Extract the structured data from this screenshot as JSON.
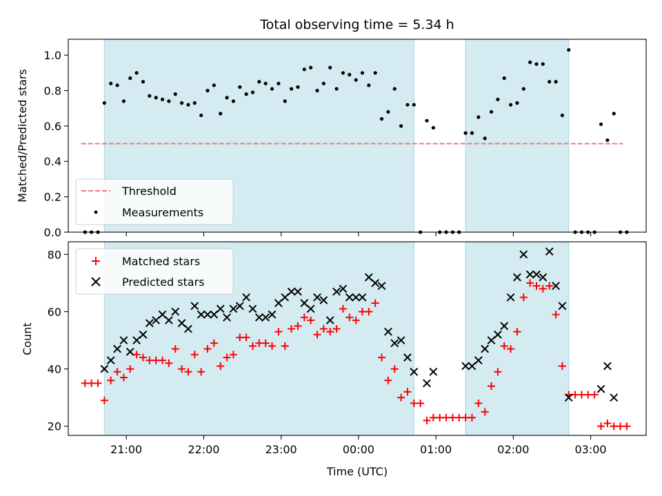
{
  "chart_data": [
    {
      "type": "scatter",
      "title": "Total observing time = 5.34 h",
      "xlabel": "",
      "ylabel": "Matched/Predicted stars",
      "ylim": [
        0,
        1.09
      ],
      "yticks": [
        0.0,
        0.2,
        0.4,
        0.6,
        0.8,
        1.0
      ],
      "ytick_labels": [
        "0.0",
        "0.2",
        "0.4",
        "0.6",
        "0.8",
        "1.0"
      ],
      "legend_position": "lower-left",
      "legend": [
        "Threshold",
        "Measurements"
      ],
      "threshold": {
        "name": "Threshold",
        "value": 0.5,
        "x_range": [
          "20:25",
          "03:25"
        ],
        "color": "#f07878"
      },
      "shaded_intervals": [
        [
          "20:43",
          "00:43"
        ],
        [
          "01:23",
          "02:43"
        ]
      ],
      "shade_color": "#d4ebf1",
      "series": [
        {
          "name": "Measurements",
          "color": "#000000",
          "points": [
            [
              "20:28",
              0.0
            ],
            [
              "20:33",
              0.0
            ],
            [
              "20:38",
              0.0
            ],
            [
              "20:43",
              0.73
            ],
            [
              "20:48",
              0.84
            ],
            [
              "20:53",
              0.83
            ],
            [
              "20:58",
              0.74
            ],
            [
              "21:03",
              0.87
            ],
            [
              "21:08",
              0.9
            ],
            [
              "21:13",
              0.85
            ],
            [
              "21:18",
              0.77
            ],
            [
              "21:23",
              0.76
            ],
            [
              "21:28",
              0.75
            ],
            [
              "21:33",
              0.74
            ],
            [
              "21:38",
              0.78
            ],
            [
              "21:43",
              0.73
            ],
            [
              "21:48",
              0.72
            ],
            [
              "21:53",
              0.73
            ],
            [
              "21:58",
              0.66
            ],
            [
              "22:03",
              0.8
            ],
            [
              "22:08",
              0.83
            ],
            [
              "22:13",
              0.67
            ],
            [
              "22:18",
              0.76
            ],
            [
              "22:23",
              0.74
            ],
            [
              "22:28",
              0.82
            ],
            [
              "22:33",
              0.78
            ],
            [
              "22:38",
              0.79
            ],
            [
              "22:43",
              0.85
            ],
            [
              "22:48",
              0.84
            ],
            [
              "22:53",
              0.81
            ],
            [
              "22:58",
              0.84
            ],
            [
              "23:03",
              0.74
            ],
            [
              "23:08",
              0.81
            ],
            [
              "23:13",
              0.82
            ],
            [
              "23:18",
              0.92
            ],
            [
              "23:23",
              0.93
            ],
            [
              "23:28",
              0.8
            ],
            [
              "23:33",
              0.84
            ],
            [
              "23:38",
              0.93
            ],
            [
              "23:43",
              0.81
            ],
            [
              "23:48",
              0.9
            ],
            [
              "23:53",
              0.89
            ],
            [
              "23:58",
              0.86
            ],
            [
              "00:03",
              0.9
            ],
            [
              "00:08",
              0.83
            ],
            [
              "00:13",
              0.9
            ],
            [
              "00:18",
              0.64
            ],
            [
              "00:23",
              0.68
            ],
            [
              "00:28",
              0.81
            ],
            [
              "00:33",
              0.6
            ],
            [
              "00:38",
              0.72
            ],
            [
              "00:43",
              0.72
            ],
            [
              "00:48",
              0.0
            ],
            [
              "00:53",
              0.63
            ],
            [
              "00:58",
              0.59
            ],
            [
              "01:03",
              0.0
            ],
            [
              "01:08",
              0.0
            ],
            [
              "01:13",
              0.0
            ],
            [
              "01:18",
              0.0
            ],
            [
              "01:23",
              0.56
            ],
            [
              "01:28",
              0.56
            ],
            [
              "01:33",
              0.65
            ],
            [
              "01:38",
              0.53
            ],
            [
              "01:43",
              0.68
            ],
            [
              "01:48",
              0.75
            ],
            [
              "01:53",
              0.87
            ],
            [
              "01:58",
              0.72
            ],
            [
              "02:03",
              0.73
            ],
            [
              "02:08",
              0.81
            ],
            [
              "02:13",
              0.96
            ],
            [
              "02:18",
              0.95
            ],
            [
              "02:23",
              0.95
            ],
            [
              "02:28",
              0.85
            ],
            [
              "02:33",
              0.85
            ],
            [
              "02:38",
              0.66
            ],
            [
              "02:43",
              1.03
            ],
            [
              "02:48",
              0.0
            ],
            [
              "02:53",
              0.0
            ],
            [
              "02:58",
              0.0
            ],
            [
              "03:03",
              0.0
            ],
            [
              "03:08",
              0.61
            ],
            [
              "03:13",
              0.52
            ],
            [
              "03:18",
              0.67
            ],
            [
              "03:23",
              0.0
            ],
            [
              "03:28",
              0.0
            ]
          ]
        }
      ]
    },
    {
      "type": "scatter",
      "title": "",
      "xlabel": "Time (UTC)",
      "ylabel": "Count",
      "ylim": [
        16.8,
        84.4
      ],
      "yticks": [
        20,
        40,
        60,
        80
      ],
      "ytick_labels": [
        "20",
        "40",
        "60",
        "80"
      ],
      "xlim": [
        "20:15",
        "03:43"
      ],
      "xticks": [
        "21:00",
        "22:00",
        "23:00",
        "00:00",
        "01:00",
        "02:00",
        "03:00"
      ],
      "xtick_labels": [
        "21:00",
        "22:00",
        "23:00",
        "00:00",
        "01:00",
        "02:00",
        "03:00"
      ],
      "legend_position": "upper-left",
      "legend": [
        "Matched stars",
        "Predicted stars"
      ],
      "shaded_intervals": [
        [
          "20:43",
          "00:43"
        ],
        [
          "01:23",
          "02:43"
        ]
      ],
      "shade_color": "#d4ebf1",
      "series": [
        {
          "name": "Matched stars",
          "marker": "plus",
          "color": "#ff0000",
          "points": [
            [
              "20:28",
              35
            ],
            [
              "20:33",
              35
            ],
            [
              "20:38",
              35
            ],
            [
              "20:43",
              29
            ],
            [
              "20:48",
              36
            ],
            [
              "20:53",
              39
            ],
            [
              "20:58",
              37
            ],
            [
              "21:03",
              40
            ],
            [
              "21:08",
              45
            ],
            [
              "21:13",
              44
            ],
            [
              "21:18",
              43
            ],
            [
              "21:23",
              43
            ],
            [
              "21:28",
              43
            ],
            [
              "21:33",
              42
            ],
            [
              "21:38",
              47
            ],
            [
              "21:43",
              40
            ],
            [
              "21:48",
              39
            ],
            [
              "21:53",
              45
            ],
            [
              "21:58",
              39
            ],
            [
              "22:03",
              47
            ],
            [
              "22:08",
              49
            ],
            [
              "22:13",
              41
            ],
            [
              "22:18",
              44
            ],
            [
              "22:23",
              45
            ],
            [
              "22:28",
              51
            ],
            [
              "22:33",
              51
            ],
            [
              "22:38",
              48
            ],
            [
              "22:43",
              49
            ],
            [
              "22:48",
              49
            ],
            [
              "22:53",
              48
            ],
            [
              "22:58",
              53
            ],
            [
              "23:03",
              48
            ],
            [
              "23:08",
              54
            ],
            [
              "23:13",
              55
            ],
            [
              "23:18",
              58
            ],
            [
              "23:23",
              57
            ],
            [
              "23:28",
              52
            ],
            [
              "23:33",
              54
            ],
            [
              "23:38",
              53
            ],
            [
              "23:43",
              54
            ],
            [
              "23:48",
              61
            ],
            [
              "23:53",
              58
            ],
            [
              "23:58",
              57
            ],
            [
              "00:03",
              60
            ],
            [
              "00:08",
              60
            ],
            [
              "00:13",
              63
            ],
            [
              "00:18",
              44
            ],
            [
              "00:23",
              36
            ],
            [
              "00:28",
              40
            ],
            [
              "00:33",
              30
            ],
            [
              "00:38",
              32
            ],
            [
              "00:43",
              28
            ],
            [
              "00:48",
              28
            ],
            [
              "00:53",
              22
            ],
            [
              "00:58",
              23
            ],
            [
              "01:03",
              23
            ],
            [
              "01:08",
              23
            ],
            [
              "01:13",
              23
            ],
            [
              "01:18",
              23
            ],
            [
              "01:23",
              23
            ],
            [
              "01:28",
              23
            ],
            [
              "01:33",
              28
            ],
            [
              "01:38",
              25
            ],
            [
              "01:43",
              34
            ],
            [
              "01:48",
              39
            ],
            [
              "01:53",
              48
            ],
            [
              "01:58",
              47
            ],
            [
              "02:03",
              53
            ],
            [
              "02:08",
              65
            ],
            [
              "02:13",
              70
            ],
            [
              "02:18",
              69
            ],
            [
              "02:23",
              68
            ],
            [
              "02:28",
              69
            ],
            [
              "02:33",
              59
            ],
            [
              "02:38",
              41
            ],
            [
              "02:43",
              31
            ],
            [
              "02:48",
              31
            ],
            [
              "02:53",
              31
            ],
            [
              "02:58",
              31
            ],
            [
              "03:03",
              31
            ],
            [
              "03:08",
              20
            ],
            [
              "03:13",
              21
            ],
            [
              "03:18",
              20
            ],
            [
              "03:23",
              20
            ],
            [
              "03:28",
              20
            ]
          ]
        },
        {
          "name": "Predicted stars",
          "marker": "x",
          "color": "#000000",
          "points": [
            [
              "20:43",
              40
            ],
            [
              "20:48",
              43
            ],
            [
              "20:53",
              47
            ],
            [
              "20:58",
              50
            ],
            [
              "21:03",
              46
            ],
            [
              "21:08",
              50
            ],
            [
              "21:13",
              52
            ],
            [
              "21:18",
              56
            ],
            [
              "21:23",
              57
            ],
            [
              "21:28",
              59
            ],
            [
              "21:33",
              57
            ],
            [
              "21:38",
              60
            ],
            [
              "21:43",
              56
            ],
            [
              "21:48",
              54
            ],
            [
              "21:53",
              62
            ],
            [
              "21:58",
              59
            ],
            [
              "22:03",
              59
            ],
            [
              "22:08",
              59
            ],
            [
              "22:13",
              61
            ],
            [
              "22:18",
              58
            ],
            [
              "22:23",
              61
            ],
            [
              "22:28",
              62
            ],
            [
              "22:33",
              65
            ],
            [
              "22:38",
              61
            ],
            [
              "22:43",
              58
            ],
            [
              "22:48",
              58
            ],
            [
              "22:53",
              59
            ],
            [
              "22:58",
              63
            ],
            [
              "23:03",
              65
            ],
            [
              "23:08",
              67
            ],
            [
              "23:13",
              67
            ],
            [
              "23:18",
              63
            ],
            [
              "23:23",
              61
            ],
            [
              "23:28",
              65
            ],
            [
              "23:33",
              64
            ],
            [
              "23:38",
              57
            ],
            [
              "23:43",
              67
            ],
            [
              "23:48",
              68
            ],
            [
              "23:53",
              65
            ],
            [
              "23:58",
              65
            ],
            [
              "00:03",
              65
            ],
            [
              "00:08",
              72
            ],
            [
              "00:13",
              70
            ],
            [
              "00:18",
              69
            ],
            [
              "00:23",
              53
            ],
            [
              "00:28",
              49
            ],
            [
              "00:33",
              50
            ],
            [
              "00:38",
              44
            ],
            [
              "00:43",
              39
            ],
            [
              "00:53",
              35
            ],
            [
              "00:58",
              39
            ],
            [
              "01:23",
              41
            ],
            [
              "01:28",
              41
            ],
            [
              "01:33",
              43
            ],
            [
              "01:38",
              47
            ],
            [
              "01:43",
              50
            ],
            [
              "01:48",
              52
            ],
            [
              "01:53",
              55
            ],
            [
              "01:58",
              65
            ],
            [
              "02:03",
              72
            ],
            [
              "02:08",
              80
            ],
            [
              "02:13",
              73
            ],
            [
              "02:18",
              73
            ],
            [
              "02:23",
              72
            ],
            [
              "02:28",
              81
            ],
            [
              "02:33",
              69
            ],
            [
              "02:38",
              62
            ],
            [
              "02:43",
              30
            ],
            [
              "03:08",
              33
            ],
            [
              "03:13",
              41
            ],
            [
              "03:18",
              30
            ]
          ]
        }
      ]
    }
  ]
}
